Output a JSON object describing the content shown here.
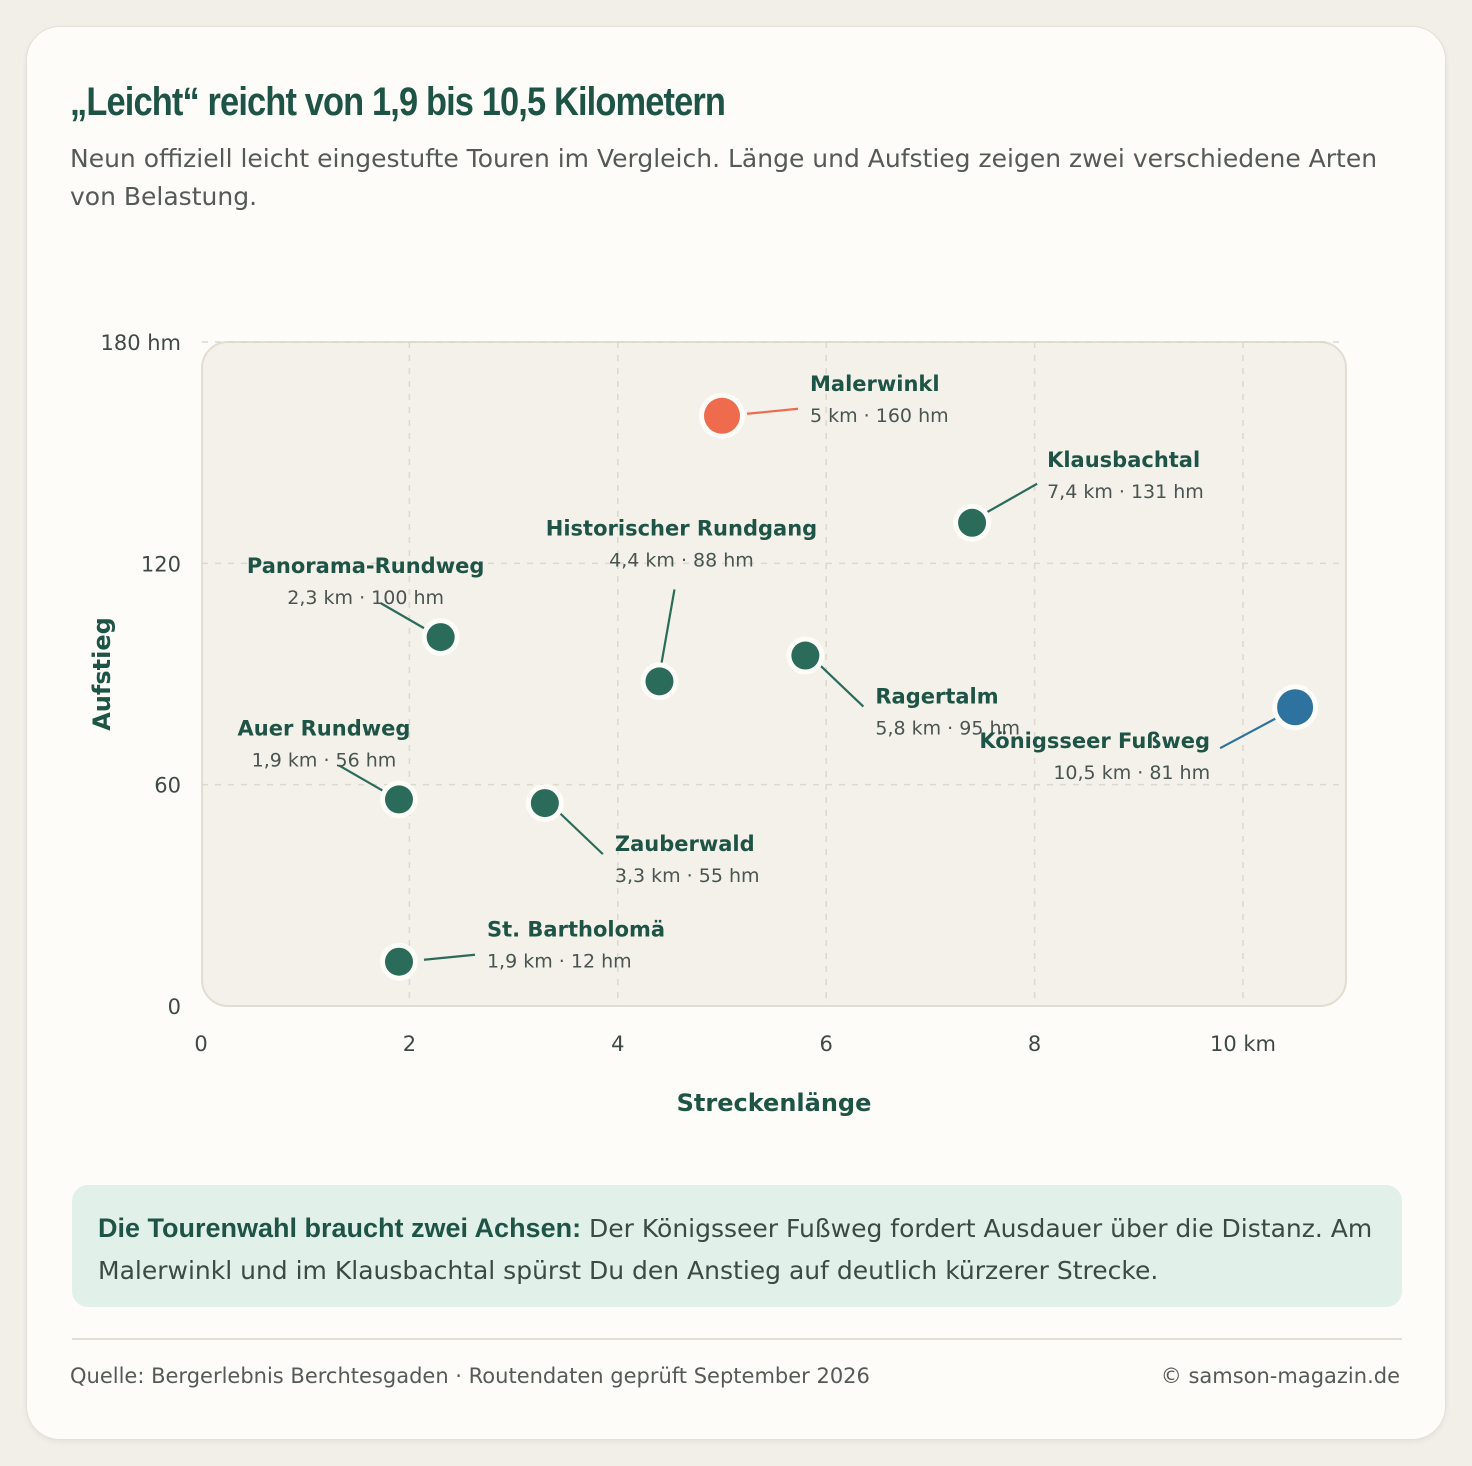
{
  "header": {
    "title": "„Leicht“ reicht von 1,9 bis 10,5 Kilometern",
    "subtitle": "Neun offiziell leicht eingestufte Touren im Vergleich. Länge und Aufstieg zeigen zwei verschiedene Arten von Belastung."
  },
  "chart_data": {
    "type": "scatter",
    "xlabel": "Streckenlänge",
    "ylabel": "Aufstieg",
    "xlim": [
      0,
      11
    ],
    "ylim": [
      0,
      180
    ],
    "x_ticks": [
      {
        "value": 0,
        "label": "0"
      },
      {
        "value": 2,
        "label": "2"
      },
      {
        "value": 4,
        "label": "4"
      },
      {
        "value": 6,
        "label": "6"
      },
      {
        "value": 8,
        "label": "8"
      },
      {
        "value": 10,
        "label": "10 km"
      }
    ],
    "y_ticks": [
      {
        "value": 0,
        "label": "0"
      },
      {
        "value": 60,
        "label": "60"
      },
      {
        "value": 120,
        "label": "120"
      },
      {
        "value": 180,
        "label": "180 hm"
      }
    ],
    "grid": true,
    "colors": {
      "default": "#2a6b5a",
      "steep": "#ee6c4d",
      "long": "#2e72a0"
    },
    "points": [
      {
        "name": "Malerwinkl",
        "detail": "5 km · 160 hm",
        "x": 5,
        "y": 160,
        "color": "steep",
        "label_pos": "right"
      },
      {
        "name": "Klausbachtal",
        "detail": "7,4 km · 131 hm",
        "x": 7.4,
        "y": 131,
        "color": "default",
        "label_pos": "upper-right"
      },
      {
        "name": "Historischer Rundgang",
        "detail": "4,4 km · 88 hm",
        "x": 4.4,
        "y": 88,
        "color": "default",
        "label_pos": "above"
      },
      {
        "name": "Panorama-Rundweg",
        "detail": "2,3 km · 100 hm",
        "x": 2.3,
        "y": 100,
        "color": "default",
        "label_pos": "upper-left"
      },
      {
        "name": "Ragertalm",
        "detail": "5,8 km · 95 hm",
        "x": 5.8,
        "y": 95,
        "color": "default",
        "label_pos": "lower-right"
      },
      {
        "name": "Königsseer Fußweg",
        "detail": "10,5 km · 81 hm",
        "x": 10.5,
        "y": 81,
        "color": "long",
        "label_pos": "lower-left"
      },
      {
        "name": "Auer Rundweg",
        "detail": "1,9 km · 56 hm",
        "x": 1.9,
        "y": 56,
        "color": "default",
        "label_pos": "upper-left"
      },
      {
        "name": "Zauberwald",
        "detail": "3,3 km · 55 hm",
        "x": 3.3,
        "y": 55,
        "color": "default",
        "label_pos": "lower-right"
      },
      {
        "name": "St. Bartholomä",
        "detail": "1,9 km · 12 hm",
        "x": 1.9,
        "y": 12,
        "color": "default",
        "label_pos": "right"
      }
    ]
  },
  "note": {
    "lead": "Die Tourenwahl braucht zwei Achsen:",
    "text": " Der Königsseer Fußweg fordert Ausdauer über die Distanz. Am Malerwinkl und im Klausbachtal spürst Du den Anstieg auf deutlich kürzerer Strecke."
  },
  "footer": {
    "source": "Quelle: Bergerlebnis Berchtesgaden · Routendaten geprüft September 2026",
    "copyright": "© samson-magazin.de"
  }
}
